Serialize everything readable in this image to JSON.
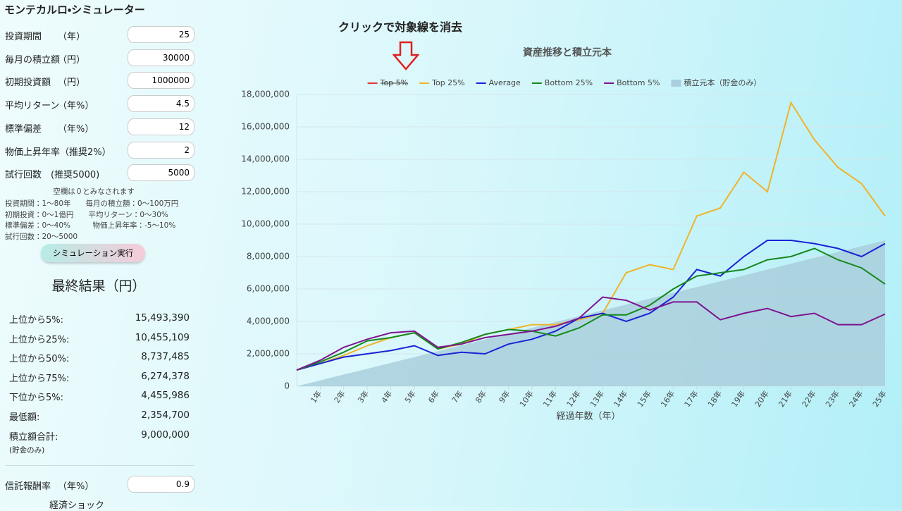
{
  "form": {
    "title": "モンテカルロ・シミュレーター",
    "fields": [
      {
        "label": "投資期間",
        "unit": "（年）",
        "value": 25
      },
      {
        "label": "毎月の積立額",
        "unit": "（円）",
        "value": 30000
      },
      {
        "label": "初期投資額",
        "unit": "（円）",
        "value": 1000000
      },
      {
        "label": "平均リターン",
        "unit": "（年%）",
        "value": 4.5
      },
      {
        "label": "標準偏差",
        "unit": "（年%）",
        "value": 12
      },
      {
        "label": "物価上昇年率（推奨2%）",
        "value": 2
      },
      {
        "label": "試行回数　(推奨5000)",
        "value": 5000
      }
    ],
    "notes": [
      "空欄は０とみなされます",
      "投資期間：1～80年　　毎月の積立額：0～100万円",
      "初期投資：0～1億円　　平均リターン：0～30%",
      "標準偏差：0～40%　　　物価上昇年率：-5～10%",
      "試行回数：20～5000"
    ],
    "button": "シミュレーション実行"
  },
  "results": {
    "title": "最終結果（円）",
    "rows": [
      {
        "label": "上位から5%:",
        "value": "15,493,390"
      },
      {
        "label": "上位から25%:",
        "value": "10,455,109"
      },
      {
        "label": "上位から50%:",
        "value": "8,737,485"
      },
      {
        "label": "上位から75%:",
        "value": "6,274,378"
      },
      {
        "label": "下位から5%:",
        "value": "4,455,986"
      },
      {
        "label": "最低額:",
        "value": "2,354,700"
      },
      {
        "label": "積立額合計:",
        "value": "9,000,000"
      }
    ],
    "note": "(貯金のみ)"
  },
  "fee": {
    "label": "信託報酬率",
    "unit": "（年%）",
    "value": 0.9
  },
  "shock": "経済ショック",
  "annotation": "クリックで対象線を消去",
  "chart_data": {
    "type": "line",
    "title": "資産推移と積立元本",
    "x_label": "経過年数（年）",
    "x": [
      0,
      1,
      2,
      3,
      4,
      5,
      6,
      7,
      8,
      9,
      10,
      11,
      12,
      13,
      14,
      15,
      16,
      17,
      18,
      19,
      20,
      21,
      22,
      23,
      24,
      25
    ],
    "xlim": [
      0,
      25
    ],
    "xticks": [
      {
        "value": 1,
        "label": "1年"
      },
      {
        "value": 2,
        "label": "2年"
      },
      {
        "value": 3,
        "label": "3年"
      },
      {
        "value": 4,
        "label": "4年"
      },
      {
        "value": 5,
        "label": "5年"
      },
      {
        "value": 6,
        "label": "6年"
      },
      {
        "value": 7,
        "label": "7年"
      },
      {
        "value": 8,
        "label": "8年"
      },
      {
        "value": 9,
        "label": "9年"
      },
      {
        "value": 10,
        "label": "10年"
      },
      {
        "value": 11,
        "label": "11年"
      },
      {
        "value": 12,
        "label": "12年"
      },
      {
        "value": 13,
        "label": "13年"
      },
      {
        "value": 14,
        "label": "14年"
      },
      {
        "value": 15,
        "label": "15年"
      },
      {
        "value": 16,
        "label": "16年"
      },
      {
        "value": 17,
        "label": "17年"
      },
      {
        "value": 18,
        "label": "18年"
      },
      {
        "value": 19,
        "label": "19年"
      },
      {
        "value": 20,
        "label": "20年"
      },
      {
        "value": 21,
        "label": "21年"
      },
      {
        "value": 22,
        "label": "22年"
      },
      {
        "value": 23,
        "label": "23年"
      },
      {
        "value": 24,
        "label": "24年"
      },
      {
        "value": 25,
        "label": "25年"
      }
    ],
    "ylim": [
      0,
      18000000
    ],
    "yticks": [
      0,
      {
        "value": 2000000,
        "label": "2,000,000"
      },
      {
        "value": 4000000,
        "label": "4,000,000"
      },
      {
        "value": 6000000,
        "label": "6,000,000"
      },
      {
        "value": 8000000,
        "label": "8,000,000"
      },
      {
        "value": 10000000,
        "label": "10,000,000"
      },
      {
        "value": 12000000,
        "label": "12,000,000"
      },
      {
        "value": 14000000,
        "label": "14,000,000"
      },
      {
        "value": 16000000,
        "label": "16,000,000"
      },
      {
        "value": 18000000,
        "label": "18,000,000"
      }
    ],
    "grid": true,
    "hidden_series": [
      {
        "name": "Top 5%",
        "color": "#e53935"
      }
    ],
    "series": [
      {
        "name": "Top 25%",
        "color": "#f0b429",
        "values": [
          1000000,
          1400000,
          1900000,
          2500000,
          3000000,
          3300000,
          2300000,
          2600000,
          3200000,
          3500000,
          3800000,
          3800000,
          4100000,
          4500000,
          7000000,
          7500000,
          7200000,
          10500000,
          11000000,
          13200000,
          12000000,
          17500000,
          15200000,
          13500000,
          12500000,
          10500000
        ]
      },
      {
        "name": "Average",
        "color": "#1a23d6",
        "values": [
          1000000,
          1400000,
          1800000,
          2000000,
          2200000,
          2500000,
          1900000,
          2100000,
          2000000,
          2600000,
          2900000,
          3400000,
          4200000,
          4500000,
          4000000,
          4500000,
          5500000,
          7200000,
          6800000,
          8000000,
          9000000,
          9000000,
          8800000,
          8500000,
          8000000,
          8800000
        ]
      },
      {
        "name": "Bottom 25%",
        "color": "#16891e",
        "values": [
          1000000,
          1500000,
          2100000,
          2800000,
          3000000,
          3300000,
          2300000,
          2700000,
          3200000,
          3500000,
          3400000,
          3100000,
          3600000,
          4400000,
          4400000,
          5000000,
          6000000,
          6800000,
          7000000,
          7200000,
          7800000,
          8000000,
          8500000,
          7800000,
          7300000,
          6300000
        ]
      },
      {
        "name": "Bottom 5%",
        "color": "#7d1590",
        "values": [
          1000000,
          1600000,
          2400000,
          2900000,
          3300000,
          3400000,
          2400000,
          2600000,
          3000000,
          3200000,
          3400000,
          3700000,
          4200000,
          5500000,
          5300000,
          4700000,
          5200000,
          5200000,
          4100000,
          4500000,
          4800000,
          4300000,
          4500000,
          3800000,
          3800000,
          4450000
        ]
      },
      {
        "name": "積立元本（貯金のみ）",
        "color": "#a9cfdc",
        "fill": true,
        "values": [
          0,
          360000,
          720000,
          1080000,
          1440000,
          1800000,
          2160000,
          2520000,
          2880000,
          3240000,
          3600000,
          3960000,
          4320000,
          4680000,
          5040000,
          5400000,
          5760000,
          6120000,
          6480000,
          6840000,
          7200000,
          7560000,
          7920000,
          8280000,
          8640000,
          9000000
        ]
      }
    ]
  }
}
